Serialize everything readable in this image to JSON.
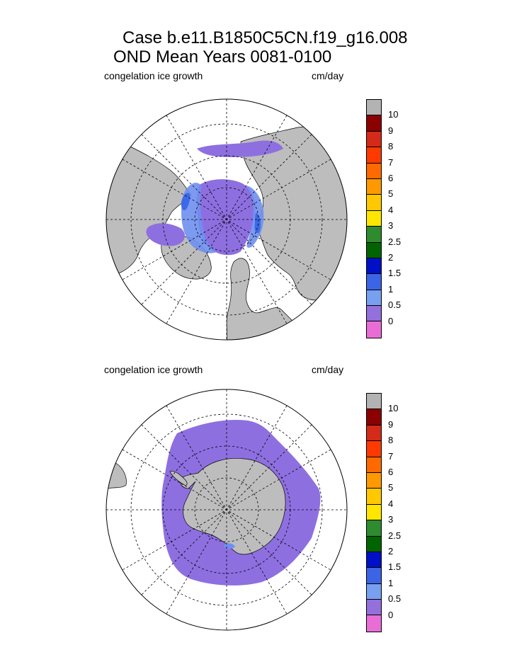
{
  "title": {
    "line1": "Case b.e11.B1850C5CN.f19_g16.008",
    "line2": "OND Mean   Years 0081-0100"
  },
  "colors": {
    "land": "#bdbdbd",
    "ice_low": "#8e6fe0",
    "ice_mid": "#6f8ff0",
    "ice_high": "#3b6ae8"
  },
  "panels": [
    {
      "hemisphere": "north",
      "variable": "congelation ice growth",
      "units": "cm/day",
      "colorbar": {
        "colors": [
          "#b3b3b3",
          "#8b0000",
          "#d42a1a",
          "#ff3a00",
          "#ff6a00",
          "#ff9900",
          "#ffc800",
          "#ffe600",
          "#2e8b2e",
          "#006400",
          "#0010c8",
          "#3c64e6",
          "#78a0f0",
          "#9370db",
          "#e86ed6"
        ],
        "labels": [
          "10",
          "9",
          "8",
          "7",
          "6",
          "5",
          "4",
          "3",
          "2.5",
          "2",
          "1.5",
          "1",
          "0.5",
          "0"
        ]
      }
    },
    {
      "hemisphere": "south",
      "variable": "congelation ice growth",
      "units": "cm/day",
      "colorbar": {
        "colors": [
          "#b3b3b3",
          "#8b0000",
          "#d42a1a",
          "#ff3a00",
          "#ff6a00",
          "#ff9900",
          "#ffc800",
          "#ffe600",
          "#2e8b2e",
          "#006400",
          "#0010c8",
          "#3c64e6",
          "#78a0f0",
          "#9370db",
          "#e86ed6"
        ],
        "labels": [
          "10",
          "9",
          "8",
          "7",
          "6",
          "5",
          "4",
          "3",
          "2.5",
          "2",
          "1.5",
          "1",
          "0.5",
          "0"
        ]
      }
    }
  ]
}
